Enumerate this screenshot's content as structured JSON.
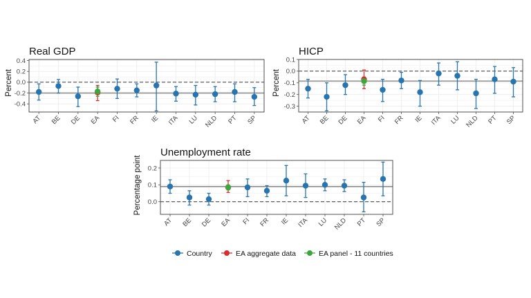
{
  "colors": {
    "country": "#2774ae",
    "ea_aggregate": "#d62f2f",
    "ea_panel": "#3ea63e",
    "frame": "#4d4d4d",
    "zero_line": "#333333",
    "reference_line": "#8c8c8c",
    "grid": "#ebebeb"
  },
  "legend": {
    "items": [
      {
        "label": "Country",
        "color": "#2774ae"
      },
      {
        "label": "EA aggregate data",
        "color": "#d62f2f"
      },
      {
        "label": "EA panel - 11 countries",
        "color": "#3ea63e"
      }
    ]
  },
  "chart_data": [
    {
      "type": "scatter",
      "title": "Real GDP",
      "xlabel": "",
      "ylabel": "Percent",
      "categories": [
        "AT",
        "BE",
        "DE",
        "EA",
        "FI",
        "FR",
        "IE",
        "ITA",
        "LU",
        "NLD",
        "PT",
        "SP"
      ],
      "ylim": [
        -0.55,
        0.42
      ],
      "yticks": [
        -0.4,
        -0.2,
        0.0,
        0.2,
        0.4
      ],
      "ytick_labels": [
        "-0.4",
        "-0.2",
        "0.0",
        "0.2",
        "0.4"
      ],
      "grid": true,
      "zero_line": 0.0,
      "reference_line": -0.2,
      "series": [
        {
          "key": "country",
          "points": [
            {
              "x": "AT",
              "y": -0.18,
              "low": -0.33,
              "high": -0.03
            },
            {
              "x": "BE",
              "y": -0.07,
              "low": -0.2,
              "high": 0.05
            },
            {
              "x": "DE",
              "y": -0.26,
              "low": -0.45,
              "high": -0.09
            },
            {
              "x": "FI",
              "y": -0.12,
              "low": -0.3,
              "high": 0.06
            },
            {
              "x": "FR",
              "y": -0.15,
              "low": -0.27,
              "high": -0.03
            },
            {
              "x": "IE",
              "y": -0.06,
              "low": -0.53,
              "high": 0.37
            },
            {
              "x": "ITA",
              "y": -0.21,
              "low": -0.35,
              "high": -0.08
            },
            {
              "x": "LU",
              "y": -0.23,
              "low": -0.42,
              "high": -0.06
            },
            {
              "x": "NLD",
              "y": -0.22,
              "low": -0.36,
              "high": -0.08
            },
            {
              "x": "PT",
              "y": -0.18,
              "low": -0.36,
              "high": -0.03
            },
            {
              "x": "SP",
              "y": -0.27,
              "low": -0.43,
              "high": -0.1
            }
          ]
        },
        {
          "key": "ea_aggregate",
          "points": [
            {
              "x": "EA",
              "y": -0.19,
              "low": -0.34,
              "high": -0.06
            }
          ]
        },
        {
          "key": "ea_panel",
          "points": [
            {
              "x": "EA",
              "y": -0.17,
              "low": -0.26,
              "high": -0.09
            }
          ]
        }
      ]
    },
    {
      "type": "scatter",
      "title": "HICP",
      "xlabel": "",
      "ylabel": "Percent",
      "categories": [
        "AT",
        "BE",
        "DE",
        "EA",
        "FI",
        "FR",
        "IE",
        "ITA",
        "LU",
        "NLD",
        "PT",
        "SP"
      ],
      "ylim": [
        -0.35,
        0.1
      ],
      "yticks": [
        -0.3,
        -0.2,
        -0.1,
        0.0,
        0.1
      ],
      "ytick_labels": [
        "-0.3",
        "-0.2",
        "-0.1",
        "0.0",
        "0.1"
      ],
      "grid": true,
      "zero_line": 0.0,
      "reference_line": -0.085,
      "series": [
        {
          "key": "country",
          "points": [
            {
              "x": "AT",
              "y": -0.15,
              "low": -0.23,
              "high": -0.07
            },
            {
              "x": "BE",
              "y": -0.22,
              "low": -0.34,
              "high": -0.1
            },
            {
              "x": "DE",
              "y": -0.12,
              "low": -0.2,
              "high": -0.03
            },
            {
              "x": "FI",
              "y": -0.16,
              "low": -0.26,
              "high": -0.07
            },
            {
              "x": "FR",
              "y": -0.08,
              "low": -0.15,
              "high": -0.01
            },
            {
              "x": "IE",
              "y": -0.18,
              "low": -0.3,
              "high": -0.08
            },
            {
              "x": "ITA",
              "y": -0.02,
              "low": -0.12,
              "high": 0.07
            },
            {
              "x": "LU",
              "y": -0.04,
              "low": -0.16,
              "high": 0.08
            },
            {
              "x": "NLD",
              "y": -0.19,
              "low": -0.32,
              "high": -0.07
            },
            {
              "x": "PT",
              "y": -0.07,
              "low": -0.19,
              "high": 0.04
            },
            {
              "x": "SP",
              "y": -0.09,
              "low": -0.22,
              "high": 0.03
            }
          ]
        },
        {
          "key": "ea_aggregate",
          "points": [
            {
              "x": "EA",
              "y": -0.07,
              "low": -0.15,
              "high": 0.01
            }
          ]
        },
        {
          "key": "ea_panel",
          "points": [
            {
              "x": "EA",
              "y": -0.085,
              "low": -0.12,
              "high": -0.05
            }
          ]
        }
      ]
    },
    {
      "type": "scatter",
      "title": "Unemployment rate",
      "xlabel": "",
      "ylabel": "Percentage point",
      "categories": [
        "AT",
        "BE",
        "DE",
        "EA",
        "FI",
        "FR",
        "IE",
        "ITA",
        "LU",
        "NLD",
        "PT",
        "SP"
      ],
      "ylim": [
        -0.075,
        0.245
      ],
      "yticks": [
        0.0,
        0.1,
        0.2
      ],
      "ytick_labels": [
        "0.0",
        "0.1",
        "0.2"
      ],
      "grid": true,
      "zero_line": 0.0,
      "reference_line": 0.09,
      "series": [
        {
          "key": "country",
          "points": [
            {
              "x": "AT",
              "y": 0.09,
              "low": 0.05,
              "high": 0.13
            },
            {
              "x": "BE",
              "y": 0.025,
              "low": -0.02,
              "high": 0.065
            },
            {
              "x": "DE",
              "y": 0.015,
              "low": -0.02,
              "high": 0.05
            },
            {
              "x": "FI",
              "y": 0.085,
              "low": 0.03,
              "high": 0.135
            },
            {
              "x": "FR",
              "y": 0.065,
              "low": 0.03,
              "high": 0.095
            },
            {
              "x": "IE",
              "y": 0.125,
              "low": 0.035,
              "high": 0.215
            },
            {
              "x": "ITA",
              "y": 0.095,
              "low": 0.025,
              "high": 0.165
            },
            {
              "x": "LU",
              "y": 0.1,
              "low": 0.065,
              "high": 0.135
            },
            {
              "x": "NLD",
              "y": 0.095,
              "low": 0.06,
              "high": 0.13
            },
            {
              "x": "PT",
              "y": 0.025,
              "low": -0.06,
              "high": 0.115
            },
            {
              "x": "SP",
              "y": 0.135,
              "low": 0.035,
              "high": 0.235
            }
          ]
        },
        {
          "key": "ea_aggregate",
          "points": [
            {
              "x": "EA",
              "y": 0.085,
              "low": 0.055,
              "high": 0.125
            }
          ]
        },
        {
          "key": "ea_panel",
          "points": [
            {
              "x": "EA",
              "y": 0.085,
              "low": 0.07,
              "high": 0.1
            }
          ]
        }
      ]
    }
  ]
}
